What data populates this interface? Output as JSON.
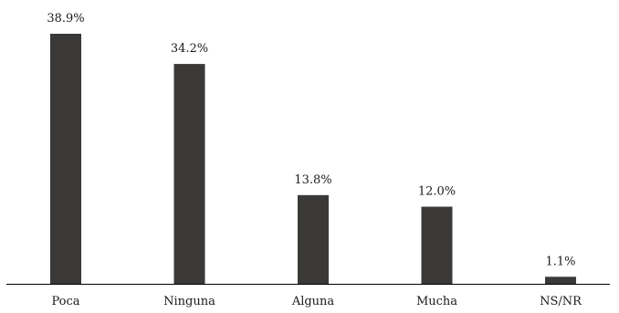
{
  "chart_data": {
    "type": "bar",
    "title": "",
    "xlabel": "",
    "ylabel": "",
    "categories": [
      "Poca",
      "Ninguna",
      "Alguna",
      "Mucha",
      "NS/NR"
    ],
    "values": [
      38.9,
      34.2,
      13.8,
      12.0,
      1.1
    ],
    "value_labels": [
      "38.9%",
      "34.2%",
      "13.8%",
      "12.0%",
      "1.1%"
    ],
    "ylim": [
      0,
      38.9
    ],
    "grid": false,
    "legend": "none",
    "bar_color": "#3a3938"
  }
}
